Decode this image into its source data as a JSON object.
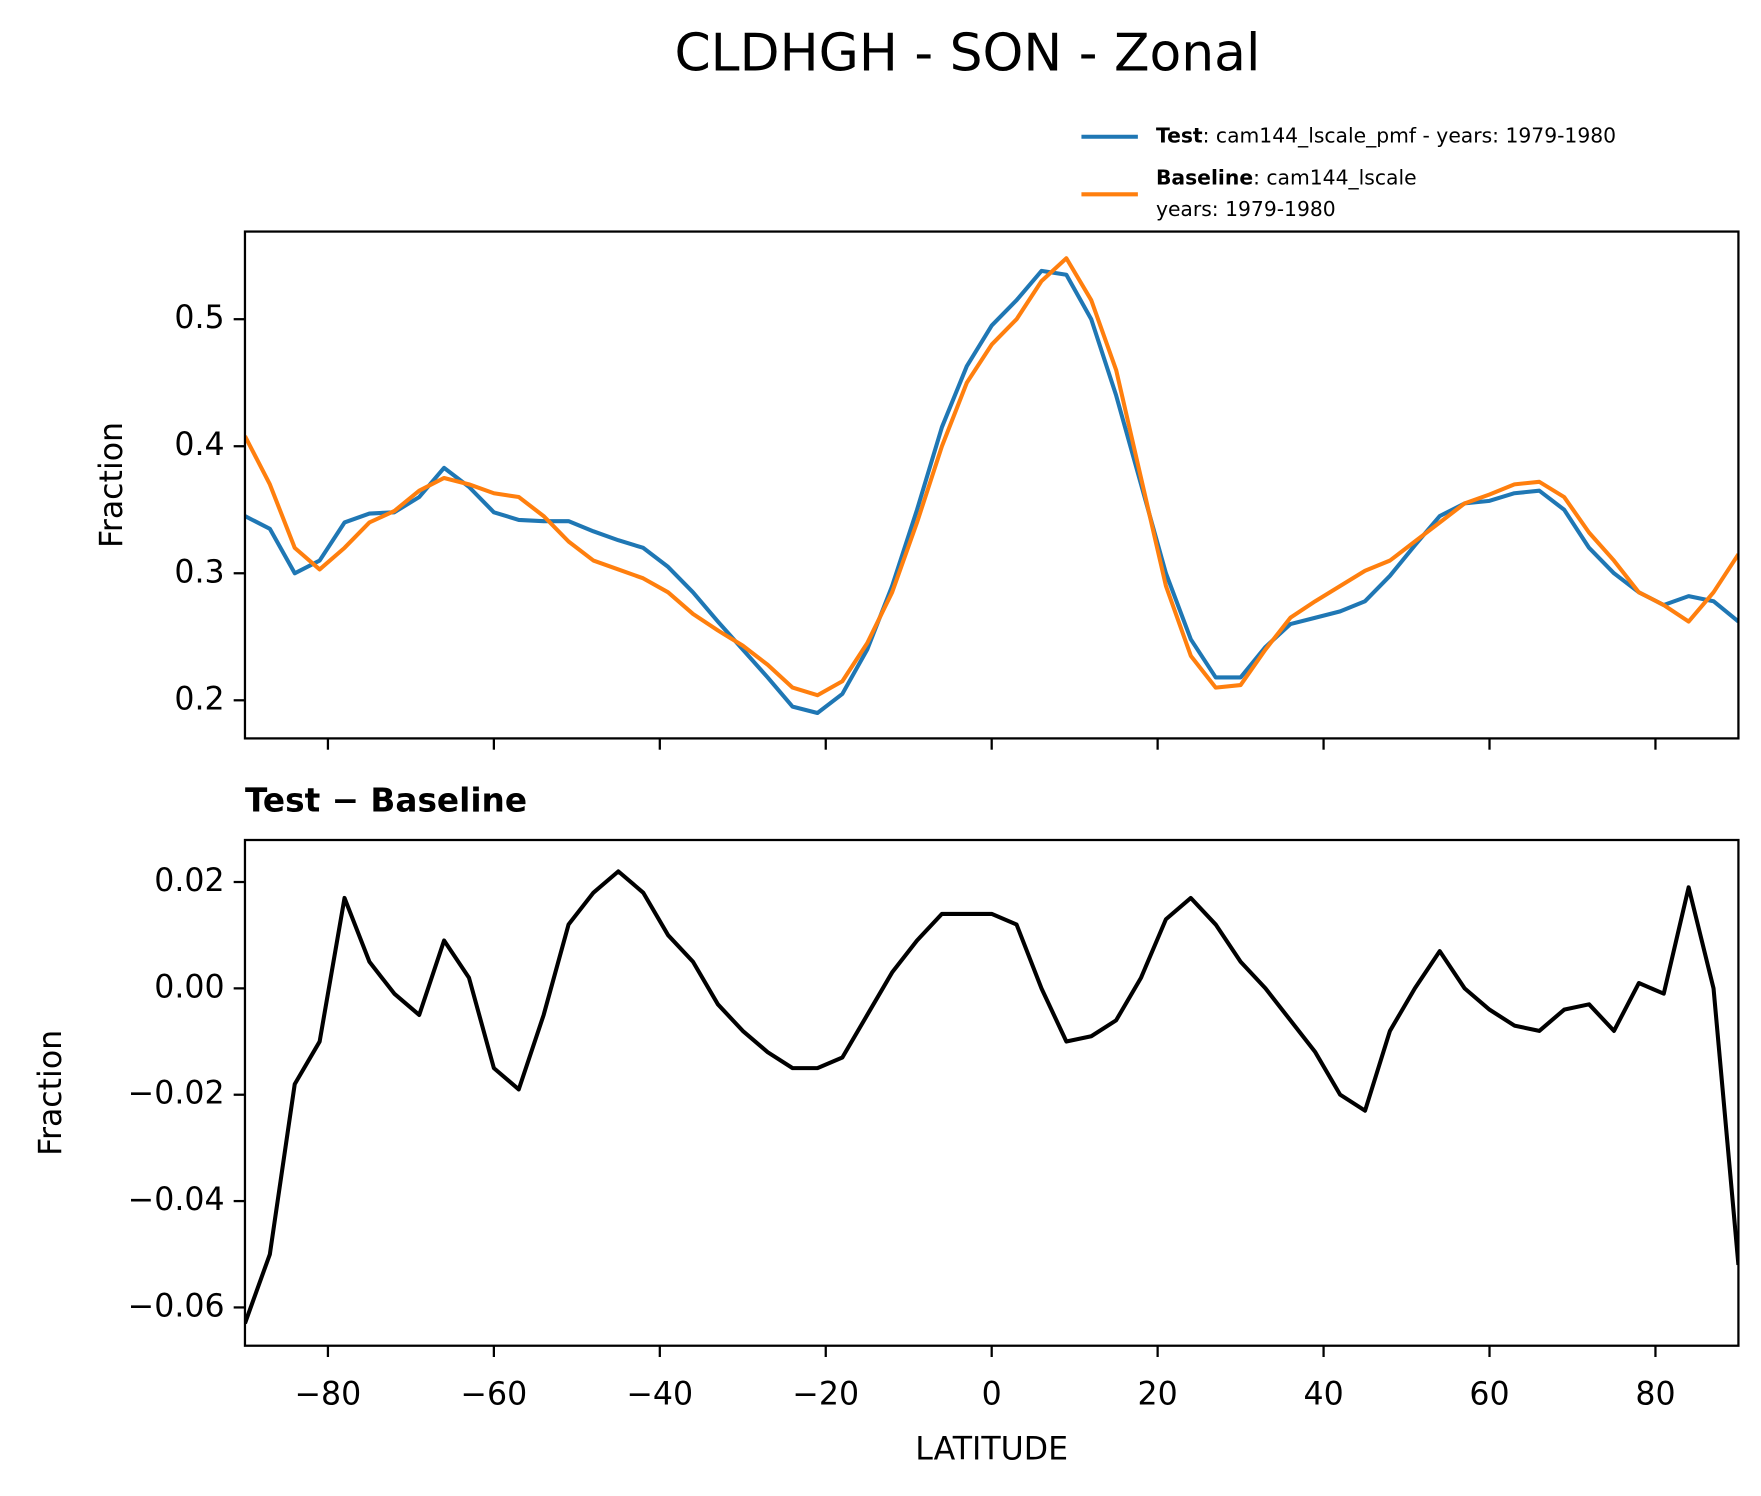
{
  "chart_data": [
    {
      "type": "line",
      "title": "CLDHGH - SON - Zonal",
      "ylabel": "Fraction",
      "legend": "upper right",
      "x": [
        -90,
        -87,
        -84,
        -81,
        -78,
        -75,
        -72,
        -69,
        -66,
        -63,
        -60,
        -57,
        -54,
        -51,
        -48,
        -45,
        -42,
        -39,
        -36,
        -33,
        -30,
        -27,
        -24,
        -21,
        -18,
        -15,
        -12,
        -9,
        -6,
        -3,
        0,
        3,
        6,
        9,
        12,
        15,
        18,
        21,
        24,
        27,
        30,
        33,
        36,
        39,
        42,
        45,
        48,
        51,
        54,
        57,
        60,
        63,
        66,
        69,
        72,
        75,
        78,
        81,
        84,
        87,
        90
      ],
      "xlim": [
        -90,
        90
      ],
      "xticks": [
        {
          "value": -80,
          "label": "−80"
        },
        {
          "value": -60,
          "label": "−60"
        },
        {
          "value": -40,
          "label": "−40"
        },
        {
          "value": -20,
          "label": "−20"
        },
        0,
        20,
        40,
        60,
        80
      ],
      "ylim": [
        0.17,
        0.569
      ],
      "yticks": [
        0.2,
        0.3,
        0.4,
        0.5
      ],
      "series": [
        {
          "name": "Test",
          "description": [
            ": cam144_lscale_pmf - years: 1979-1980"
          ],
          "color": "#1f77b4",
          "values": [
            0.345,
            0.335,
            0.3,
            0.31,
            0.34,
            0.347,
            0.348,
            0.36,
            0.383,
            0.368,
            0.348,
            0.342,
            0.341,
            0.341,
            0.333,
            0.326,
            0.32,
            0.305,
            0.285,
            0.262,
            0.24,
            0.218,
            0.195,
            0.19,
            0.205,
            0.24,
            0.29,
            0.35,
            0.415,
            0.463,
            0.495,
            0.515,
            0.538,
            0.535,
            0.5,
            0.44,
            0.37,
            0.3,
            0.248,
            0.218,
            0.218,
            0.242,
            0.26,
            0.265,
            0.27,
            0.278,
            0.298,
            0.322,
            0.345,
            0.355,
            0.357,
            0.363,
            0.365,
            0.35,
            0.32,
            0.3,
            0.285,
            0.275,
            0.282,
            0.278,
            0.262
          ]
        },
        {
          "name": "Baseline",
          "description": [
            ": cam144_lscale",
            "years: 1979-1980"
          ],
          "color": "#ff7f0e",
          "values": [
            0.408,
            0.37,
            0.32,
            0.303,
            0.32,
            0.34,
            0.349,
            0.365,
            0.375,
            0.37,
            0.363,
            0.36,
            0.345,
            0.325,
            0.31,
            0.303,
            0.296,
            0.285,
            0.268,
            0.255,
            0.243,
            0.228,
            0.21,
            0.204,
            0.215,
            0.245,
            0.285,
            0.34,
            0.4,
            0.45,
            0.48,
            0.5,
            0.53,
            0.548,
            0.515,
            0.46,
            0.375,
            0.29,
            0.235,
            0.21,
            0.212,
            0.24,
            0.265,
            0.278,
            0.29,
            0.302,
            0.31,
            0.325,
            0.34,
            0.355,
            0.362,
            0.37,
            0.372,
            0.36,
            0.332,
            0.31,
            0.285,
            0.275,
            0.262,
            0.285,
            0.315
          ]
        }
      ]
    },
    {
      "type": "line",
      "title": "Test − Baseline",
      "ylabel": "Fraction",
      "xlabel": "LATITUDE",
      "x": [
        -90,
        -87,
        -84,
        -81,
        -78,
        -75,
        -72,
        -69,
        -66,
        -63,
        -60,
        -57,
        -54,
        -51,
        -48,
        -45,
        -42,
        -39,
        -36,
        -33,
        -30,
        -27,
        -24,
        -21,
        -18,
        -15,
        -12,
        -9,
        -6,
        -3,
        0,
        3,
        6,
        9,
        12,
        15,
        18,
        21,
        24,
        27,
        30,
        33,
        36,
        39,
        42,
        45,
        48,
        51,
        54,
        57,
        60,
        63,
        66,
        69,
        72,
        75,
        78,
        81,
        84,
        87,
        90
      ],
      "xlim": [
        -90,
        90
      ],
      "xticks": [
        {
          "value": -80,
          "label": "−80"
        },
        {
          "value": -60,
          "label": "−60"
        },
        {
          "value": -40,
          "label": "−40"
        },
        {
          "value": -20,
          "label": "−20"
        },
        0,
        20,
        40,
        60,
        80
      ],
      "ylim": [
        -0.0672,
        0.0279
      ],
      "yticks": [
        {
          "value": -0.06,
          "label": "−0.06"
        },
        {
          "value": -0.04,
          "label": "−0.04"
        },
        {
          "value": -0.02,
          "label": "−0.02"
        },
        {
          "value": 0,
          "label": "0.00"
        },
        0.02
      ],
      "series": [
        {
          "color": "#000000",
          "values": [
            -0.063,
            -0.05,
            -0.018,
            -0.01,
            0.017,
            0.005,
            -0.001,
            -0.005,
            0.009,
            0.002,
            -0.015,
            -0.019,
            -0.005,
            0.012,
            0.018,
            0.022,
            0.018,
            0.01,
            0.005,
            -0.003,
            -0.008,
            -0.012,
            -0.015,
            -0.015,
            -0.013,
            -0.005,
            0.003,
            0.009,
            0.014,
            0.014,
            0.014,
            0.012,
            0.0,
            -0.01,
            -0.009,
            -0.006,
            0.002,
            0.013,
            0.017,
            0.012,
            0.005,
            0.0,
            -0.006,
            -0.012,
            -0.02,
            -0.023,
            -0.008,
            0.0,
            0.007,
            0.0,
            -0.004,
            -0.007,
            -0.008,
            -0.004,
            -0.003,
            -0.008,
            0.001,
            -0.001,
            0.019,
            0.0,
            -0.052
          ]
        }
      ]
    }
  ]
}
